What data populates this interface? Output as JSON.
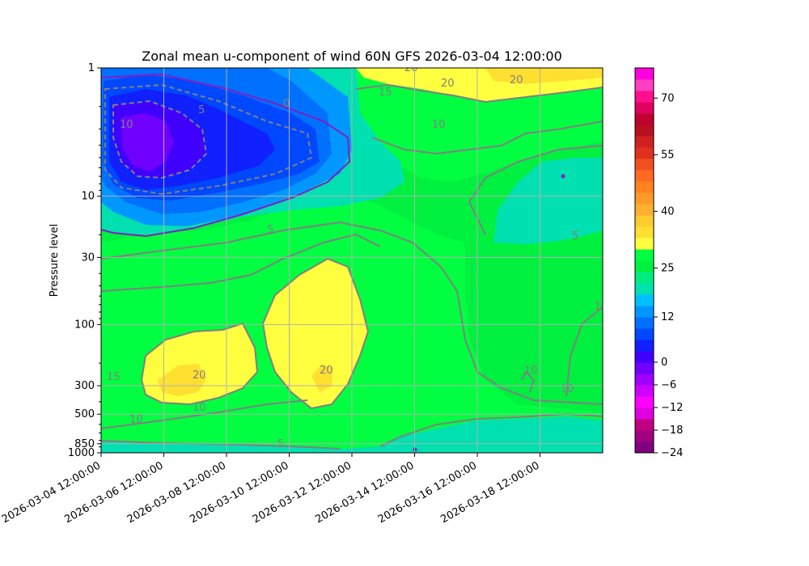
{
  "chart_data": {
    "type": "heatmap",
    "subtype": "filled-contour",
    "title": "Zonal mean u-component of wind 60N GFS 2026-03-04 12:00:00",
    "ylabel": "Pressure level",
    "xlabel": "",
    "x_ticks": [
      "2026-03-04 12:00:00",
      "2026-03-06 12:00:00",
      "2026-03-08 12:00:00",
      "2026-03-10 12:00:00",
      "2026-03-12 12:00:00",
      "2026-03-14 12:00:00",
      "2026-03-16 12:00:00",
      "2026-03-18 12:00:00"
    ],
    "x_range": [
      "2026-03-04 12:00:00",
      "2026-03-20 12:00:00"
    ],
    "y_scale": "log",
    "y_inverted": true,
    "y_range": [
      1000,
      1
    ],
    "y_ticks": [
      1,
      10,
      30,
      100,
      300,
      500,
      850,
      1000
    ],
    "grid": true,
    "colorbar": {
      "min": -24,
      "max": 78,
      "step": 3,
      "tick_labels": [
        -24,
        -18,
        -12,
        -6,
        0,
        12,
        25,
        40,
        55,
        70
      ],
      "colors": [
        "#800080",
        "#a0007f",
        "#c0007f",
        "#e000e0",
        "#ff00ff",
        "#d000ff",
        "#a000ff",
        "#7000ff",
        "#4000ff",
        "#1020ff",
        "#0048ff",
        "#0070ff",
        "#0098ff",
        "#00c0ff",
        "#00e0b0",
        "#00ec80",
        "#00f040",
        "#00ff40",
        "#ffff40",
        "#ffe030",
        "#ffcc30",
        "#ffb030",
        "#ff9a28",
        "#ff8420",
        "#ff6a20",
        "#f05020",
        "#e03020",
        "#d02020",
        "#b81020",
        "#c00030",
        "#e00060",
        "#ff1090",
        "#ff40c0",
        "#ff00e0"
      ]
    },
    "series": [
      {
        "name": "",
        "kind": "filled-regions",
        "description": "contours of zonal mean u-wind"
      }
    ],
    "contour_lines": [
      0,
      5,
      10,
      15,
      20
    ],
    "contour_label_values": [
      "20",
      "20",
      "20",
      "15",
      "10",
      "10",
      "5",
      "0",
      "5",
      "20",
      "20",
      "10",
      "10",
      "15",
      "10",
      "5",
      "10",
      "10",
      "5"
    ]
  }
}
